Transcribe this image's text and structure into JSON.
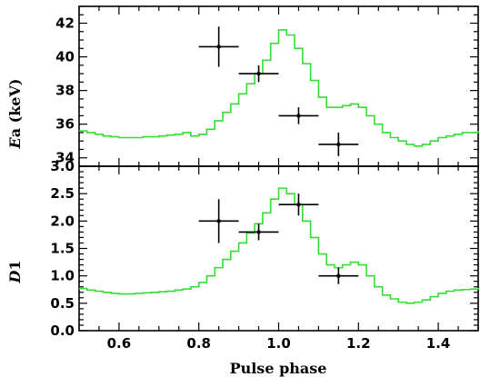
{
  "chart_data": [
    {
      "type": "line",
      "panel": "top",
      "ylabel": "Ea (keV)",
      "ylabel_parts": {
        "symbol": "E",
        "rest": "a (keV)"
      },
      "xlim": [
        0.5,
        1.5
      ],
      "ylim": [
        33.5,
        43
      ],
      "yticks_labeled": [
        34,
        36,
        38,
        40,
        42
      ],
      "yminor_step": 0.5,
      "series": [
        {
          "kind": "step-model",
          "color": "#33dd33",
          "x": [
            0.5,
            0.52,
            0.54,
            0.56,
            0.58,
            0.6,
            0.62,
            0.64,
            0.66,
            0.68,
            0.7,
            0.72,
            0.74,
            0.76,
            0.78,
            0.8,
            0.82,
            0.84,
            0.86,
            0.88,
            0.9,
            0.92,
            0.94,
            0.96,
            0.98,
            1.0,
            1.02,
            1.04,
            1.06,
            1.08,
            1.1,
            1.12,
            1.14,
            1.16,
            1.18,
            1.2,
            1.22,
            1.24,
            1.26,
            1.28,
            1.3,
            1.32,
            1.34,
            1.36,
            1.38,
            1.4,
            1.42,
            1.44,
            1.46,
            1.48,
            1.5
          ],
          "y": [
            35.6,
            35.5,
            35.4,
            35.3,
            35.25,
            35.2,
            35.2,
            35.2,
            35.25,
            35.25,
            35.3,
            35.35,
            35.4,
            35.5,
            35.3,
            35.4,
            35.7,
            36.2,
            36.7,
            37.2,
            37.8,
            38.4,
            39.0,
            39.8,
            40.8,
            41.6,
            41.3,
            40.5,
            39.6,
            38.6,
            37.6,
            37.0,
            37.0,
            37.1,
            37.2,
            37.0,
            36.5,
            36.0,
            35.5,
            35.2,
            35.0,
            34.8,
            34.7,
            34.8,
            35.0,
            35.2,
            35.3,
            35.4,
            35.5,
            35.5,
            35.6
          ]
        },
        {
          "kind": "errorbar",
          "color": "#000000",
          "x": [
            0.85,
            0.95,
            1.05,
            1.15
          ],
          "xerr": [
            0.05,
            0.05,
            0.05,
            0.05
          ],
          "y": [
            40.6,
            39.0,
            36.5,
            34.8
          ],
          "yerr": [
            1.2,
            0.5,
            0.5,
            0.7
          ]
        }
      ]
    },
    {
      "type": "line",
      "panel": "bottom",
      "xlabel": "Pulse phase",
      "ylabel": "D1",
      "ylabel_parts": {
        "symbol": "D",
        "rest": "1"
      },
      "xlim": [
        0.5,
        1.5
      ],
      "ylim": [
        0,
        3
      ],
      "yticks_labeled": [
        0.0,
        0.5,
        1.0,
        1.5,
        2.0,
        2.5,
        3.0
      ],
      "yticks_labeled_text": [
        "0.0",
        "0.5",
        "1.0",
        "1.5",
        "2.0",
        "2.5",
        "3.0"
      ],
      "yminor_step": 0.1,
      "xticks_labeled": [
        0.6,
        0.8,
        1.0,
        1.2,
        1.4
      ],
      "xticks_labeled_text": [
        "0.6",
        "0.8",
        "1.0",
        "1.2",
        "1.4"
      ],
      "xminor_step": 0.05,
      "series": [
        {
          "kind": "step-model",
          "color": "#33dd33",
          "x": [
            0.5,
            0.52,
            0.54,
            0.56,
            0.58,
            0.6,
            0.62,
            0.64,
            0.66,
            0.68,
            0.7,
            0.72,
            0.74,
            0.76,
            0.78,
            0.8,
            0.82,
            0.84,
            0.86,
            0.88,
            0.9,
            0.92,
            0.94,
            0.96,
            0.98,
            1.0,
            1.02,
            1.04,
            1.06,
            1.08,
            1.1,
            1.12,
            1.14,
            1.16,
            1.18,
            1.2,
            1.22,
            1.24,
            1.26,
            1.28,
            1.3,
            1.32,
            1.34,
            1.36,
            1.38,
            1.4,
            1.42,
            1.44,
            1.46,
            1.48,
            1.5
          ],
          "y": [
            0.77,
            0.74,
            0.72,
            0.7,
            0.68,
            0.67,
            0.67,
            0.68,
            0.69,
            0.7,
            0.71,
            0.72,
            0.74,
            0.76,
            0.8,
            0.88,
            1.0,
            1.15,
            1.3,
            1.45,
            1.6,
            1.78,
            1.95,
            2.15,
            2.4,
            2.6,
            2.5,
            2.3,
            2.0,
            1.7,
            1.4,
            1.2,
            1.15,
            1.2,
            1.25,
            1.2,
            1.0,
            0.8,
            0.65,
            0.58,
            0.52,
            0.5,
            0.52,
            0.56,
            0.62,
            0.68,
            0.72,
            0.74,
            0.75,
            0.76,
            0.78
          ]
        },
        {
          "kind": "errorbar",
          "color": "#000000",
          "x": [
            0.85,
            0.95,
            1.05,
            1.15
          ],
          "xerr": [
            0.05,
            0.05,
            0.05,
            0.05
          ],
          "y": [
            2.0,
            1.8,
            2.3,
            1.0
          ],
          "yerr": [
            0.4,
            0.15,
            0.2,
            0.15
          ]
        }
      ]
    }
  ]
}
